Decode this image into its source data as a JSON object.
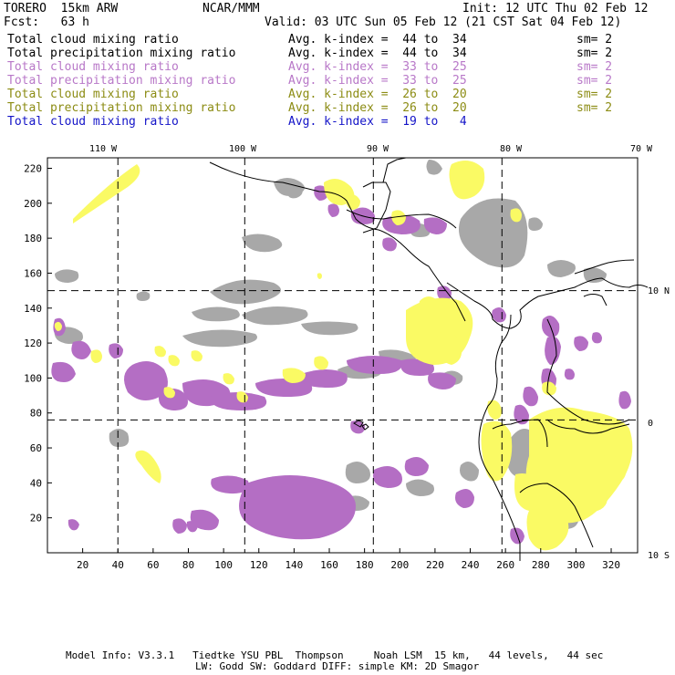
{
  "header": {
    "model": "TORERO  15km ARW",
    "org": "NCAR/MMM",
    "init": "Init: 12 UTC Thu 02 Feb 12",
    "fcst": "Fcst:   63 h",
    "valid": "Valid: 03 UTC Sun 05 Feb 12 (21 CST Sat 04 Feb 12)"
  },
  "legend": [
    {
      "label": "Total cloud mixing ratio",
      "index": "Avg. k-index =  44 to  34",
      "sm": "sm= 2",
      "color": "#000000"
    },
    {
      "label": "Total precipitation mixing ratio",
      "index": "Avg. k-index =  44 to  34",
      "sm": "sm= 2",
      "color": "#000000"
    },
    {
      "label": "Total cloud mixing ratio",
      "index": "Avg. k-index =  33 to  25",
      "sm": "sm= 2",
      "color": "#b878c8"
    },
    {
      "label": "Total precipitation mixing ratio",
      "index": "Avg. k-index =  33 to  25",
      "sm": "sm= 2",
      "color": "#b878c8"
    },
    {
      "label": "Total cloud mixing ratio",
      "index": "Avg. k-index =  26 to  20",
      "sm": "sm= 2",
      "color": "#8c8c14"
    },
    {
      "label": "Total precipitation mixing ratio",
      "index": "Avg. k-index =  26 to  20",
      "sm": "sm= 2",
      "color": "#8c8c14"
    },
    {
      "label": "Total cloud mixing ratio",
      "index": "Avg. k-index =  19 to   4",
      "sm": "",
      "color": "#1414c8"
    }
  ],
  "map": {
    "lon_labels": [
      "110 W",
      "100 W",
      "90 W",
      "80 W",
      "70 W"
    ],
    "lat_labels": [
      "10 N",
      "0",
      "10 S"
    ],
    "x_ticks": [
      "20",
      "40",
      "60",
      "80",
      "100",
      "120",
      "140",
      "160",
      "180",
      "200",
      "220",
      "240",
      "260",
      "280",
      "300",
      "320"
    ],
    "y_ticks": [
      "20",
      "40",
      "60",
      "80",
      "100",
      "120",
      "140",
      "160",
      "180",
      "200",
      "220"
    ],
    "x_range": [
      0,
      335
    ],
    "y_range": [
      0,
      226
    ],
    "grid_x": [
      40,
      112,
      185,
      258
    ],
    "grid_y": [
      76,
      150
    ],
    "colors": {
      "gray": "#a8a8a8",
      "purple": "#b46ec4",
      "yellow": "#fafa64",
      "coast": "#000000"
    }
  },
  "footer": {
    "line1": "Model Info: V3.3.1   Tiedtke YSU PBL  Thompson     Noah LSM  15 km,   44 levels,   44 sec",
    "line2": "LW: Godd SW: Goddard DIFF: simple KM: 2D Smagor"
  }
}
